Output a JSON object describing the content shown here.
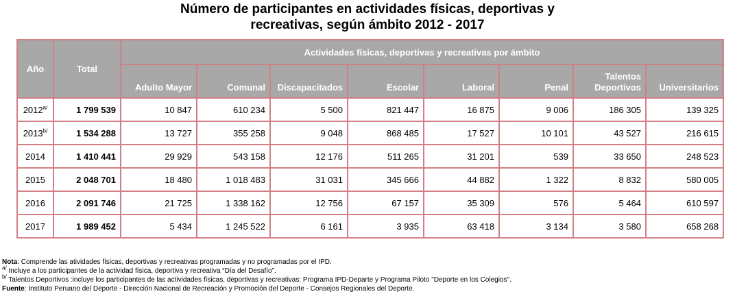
{
  "title": {
    "line1": "Número de participantes en actividades físicas, deportivas y",
    "line2": "recreativas, según ámbito 2012 - 2017"
  },
  "table": {
    "header": {
      "year": "Año",
      "total": "Total",
      "group": "Actividades físicas, deportivas y recreativas por ámbito",
      "columns": [
        "Adulto Mayor",
        "Comunal",
        "Discapacitados",
        "Escolar",
        "Laboral",
        "Penal",
        "Talentos Deportivos",
        "Universitarios"
      ]
    },
    "rows": [
      {
        "year": "2012",
        "sup": "a/",
        "total": "1 799 539",
        "values": [
          "10 847",
          "610 234",
          "5 500",
          "821 447",
          "16 875",
          "9 006",
          "186 305",
          "139 325"
        ]
      },
      {
        "year": "2013",
        "sup": "b/",
        "total": "1 534 288",
        "values": [
          "13 727",
          "355 258",
          "9 048",
          "868 485",
          "17 527",
          "10 101",
          "43 527",
          "216 615"
        ]
      },
      {
        "year": "2014",
        "sup": "",
        "total": "1 410 441",
        "values": [
          "29 929",
          "543 158",
          "12 176",
          "511 265",
          "31 201",
          "539",
          "33 650",
          "248 523"
        ]
      },
      {
        "year": "2015",
        "sup": "",
        "total": "2 048 701",
        "values": [
          "18 480",
          "1 018 483",
          "31 031",
          "345 666",
          "44 882",
          "1 322",
          "8 832",
          "580 005"
        ]
      },
      {
        "year": "2016",
        "sup": "",
        "total": "2 091 746",
        "values": [
          "21 725",
          "1 338 162",
          "12 756",
          "67 157",
          "35 309",
          "576",
          "5 464",
          "610 597"
        ]
      },
      {
        "year": "2017",
        "sup": "",
        "total": "1 989 452",
        "values": [
          "5 434",
          "1 245 522",
          "6 161",
          "3 935",
          "63 418",
          "3 134",
          "3 580",
          "658 268"
        ]
      }
    ]
  },
  "notes": {
    "nota_label": "Nota",
    "nota_text": ": Comprende las atividades físicas, deportivas y recreativas programadas y no programadas por el IPD.",
    "a_sup": "a/",
    "a_text": " Incluye a los participantes de la actividad física, deportiva y recreativa “Día del Desafío”.",
    "b_sup": "b/",
    "b_text": " Talentos Deportivos :incluye los participantes de las actividades físicas, deportivas y recreativas: Programa IPD-Departe y Programa Piloto \"Deporte en los Colegios\".",
    "fuente_label": "Fuente",
    "fuente_text": ": Instituto Peruano del Deporte - Dirección Nacional de Recreación y Promoción del Deporte - Consejos Regionales del Deporte."
  }
}
